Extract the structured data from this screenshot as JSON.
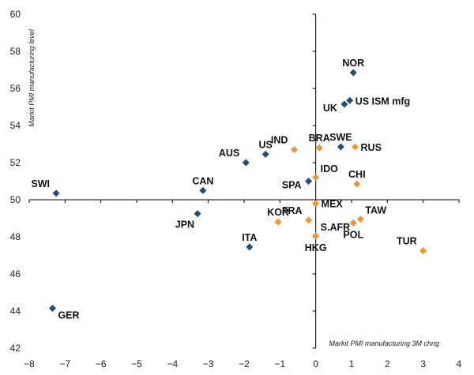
{
  "chart_data": {
    "type": "scatter",
    "title": "",
    "xlabel": "Markit PMI manufacturing 3M chng",
    "ylabel": "Markit PMI manufacturing level",
    "xlim": [
      -8,
      4
    ],
    "ylim": [
      42,
      60
    ],
    "x_ticks": [
      -8,
      -7,
      -6,
      -5,
      -4,
      -3,
      -2,
      -1,
      0,
      1,
      2,
      3,
      4
    ],
    "y_ticks": [
      42,
      44,
      46,
      48,
      50,
      52,
      54,
      56,
      58,
      60
    ],
    "grid": false,
    "legend": "none",
    "colors": {
      "blue": "#1F4E79",
      "orange": "#F0962E"
    },
    "points": [
      {
        "label": "NOR",
        "x": 1.05,
        "y": 56.85,
        "color": "blue",
        "anchor": "above"
      },
      {
        "label": "US ISM mfg",
        "x": 0.95,
        "y": 55.35,
        "color": "blue",
        "anchor": "right"
      },
      {
        "label": "UK",
        "x": 0.8,
        "y": 55.15,
        "color": "blue",
        "anchor": "left-below"
      },
      {
        "label": "SWE",
        "x": 0.7,
        "y": 52.85,
        "color": "blue",
        "anchor": "above"
      },
      {
        "label": "RUS",
        "x": 1.1,
        "y": 52.85,
        "color": "orange",
        "anchor": "right"
      },
      {
        "label": "BRA",
        "x": 0.1,
        "y": 52.8,
        "color": "orange",
        "anchor": "above"
      },
      {
        "label": "IND",
        "x": -0.6,
        "y": 52.7,
        "color": "orange",
        "anchor": "above-left"
      },
      {
        "label": "US",
        "x": -1.4,
        "y": 52.45,
        "color": "blue",
        "anchor": "above"
      },
      {
        "label": "AUS",
        "x": -1.95,
        "y": 52.0,
        "color": "blue",
        "anchor": "above-left"
      },
      {
        "label": "IDO",
        "x": 0.0,
        "y": 51.2,
        "color": "orange",
        "anchor": "above-right"
      },
      {
        "label": "SPA",
        "x": -0.2,
        "y": 51.0,
        "color": "blue",
        "anchor": "left-below"
      },
      {
        "label": "CHI",
        "x": 1.15,
        "y": 50.85,
        "color": "orange",
        "anchor": "above"
      },
      {
        "label": "CAN",
        "x": -3.15,
        "y": 50.5,
        "color": "blue",
        "anchor": "above"
      },
      {
        "label": "SWI",
        "x": -7.25,
        "y": 50.35,
        "color": "blue",
        "anchor": "above-left"
      },
      {
        "label": "MEX",
        "x": 0.0,
        "y": 49.8,
        "color": "orange",
        "anchor": "right"
      },
      {
        "label": "JPN",
        "x": -3.3,
        "y": 49.25,
        "color": "blue",
        "anchor": "below-left"
      },
      {
        "label": "TAW",
        "x": 1.25,
        "y": 48.95,
        "color": "orange",
        "anchor": "above-right"
      },
      {
        "label": "FRA",
        "x": -0.2,
        "y": 48.9,
        "color": "orange",
        "anchor": "above-left"
      },
      {
        "label": "KOR",
        "x": -1.05,
        "y": 48.8,
        "color": "orange",
        "anchor": "above"
      },
      {
        "label": "POL",
        "x": 1.05,
        "y": 48.75,
        "color": "orange",
        "anchor": "below"
      },
      {
        "label": "S.AFR",
        "x": 0.0,
        "y": 48.05,
        "color": "orange",
        "anchor": "above-right"
      },
      {
        "label": "HKG",
        "x": 0.0,
        "y": 48.05,
        "color": "orange",
        "anchor": "below"
      },
      {
        "label": "ITA",
        "x": -1.85,
        "y": 47.45,
        "color": "blue",
        "anchor": "above"
      },
      {
        "label": "TUR",
        "x": 3.0,
        "y": 47.25,
        "color": "orange",
        "anchor": "above-left"
      },
      {
        "label": "GER",
        "x": -7.35,
        "y": 44.15,
        "color": "blue",
        "anchor": "below-right"
      }
    ]
  }
}
